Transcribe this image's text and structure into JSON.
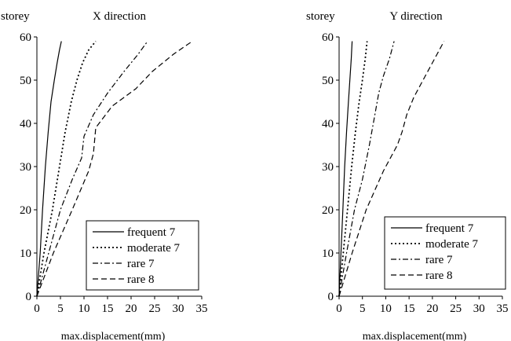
{
  "chart_data": [
    {
      "type": "line",
      "title": "X direction",
      "xlabel": "max.displacement(mm)",
      "ylabel": "storey",
      "xlim": [
        0,
        35
      ],
      "ylim": [
        0,
        60
      ],
      "xticks": [
        "0",
        "5",
        "10",
        "15",
        "20",
        "25",
        "30",
        "35"
      ],
      "yticks": [
        "0",
        "10",
        "20",
        "30",
        "40",
        "50",
        "60"
      ],
      "grid": false,
      "legend_position": "bottom-right",
      "series": [
        {
          "name": "frequent 7",
          "style": "solid",
          "x": [
            0,
            0.7,
            1.2,
            1.8,
            2.4,
            3.0,
            3.7,
            4.3,
            4.8,
            5.2
          ],
          "y": [
            0,
            10,
            20,
            30,
            38,
            45,
            50,
            54,
            57,
            59
          ]
        },
        {
          "name": "moderate 7",
          "style": "dotted",
          "x": [
            0,
            1.5,
            3.3,
            4.8,
            6.0,
            7.3,
            8.5,
            9.7,
            11.0,
            12.5
          ],
          "y": [
            0,
            10,
            20,
            30,
            38,
            45,
            50,
            54,
            57,
            59
          ]
        },
        {
          "name": "rare 7",
          "style": "dashdot",
          "x": [
            0,
            2.5,
            5.0,
            7.5,
            9.5,
            10.0,
            12.0,
            15.0,
            18.5,
            21.5,
            23.5
          ],
          "y": [
            0,
            10,
            20,
            27,
            32,
            37,
            42,
            47,
            52,
            56,
            59
          ]
        },
        {
          "name": "rare 8",
          "style": "dashed",
          "x": [
            0,
            3.5,
            7.5,
            11.0,
            12.0,
            12.5,
            16.0,
            21.0,
            24.5,
            29.0,
            33.0
          ],
          "y": [
            0,
            10,
            20,
            29,
            33,
            39,
            44,
            48,
            52,
            56,
            59
          ]
        }
      ]
    },
    {
      "type": "line",
      "title": "Y direction",
      "xlabel": "max.displacement(mm)",
      "ylabel": "storey",
      "xlim": [
        0,
        35
      ],
      "ylim": [
        0,
        60
      ],
      "xticks": [
        "0",
        "5",
        "10",
        "15",
        "20",
        "25",
        "30",
        "35"
      ],
      "yticks": [
        "0",
        "10",
        "20",
        "30",
        "40",
        "50",
        "60"
      ],
      "grid": false,
      "legend_position": "bottom-right",
      "series": [
        {
          "name": "frequent 7",
          "style": "solid",
          "x": [
            0,
            0.4,
            0.8,
            1.2,
            1.6,
            2.0,
            2.3,
            2.6,
            2.8
          ],
          "y": [
            0,
            10,
            20,
            30,
            38,
            45,
            50,
            55,
            59
          ]
        },
        {
          "name": "moderate 7",
          "style": "dotted",
          "x": [
            0,
            0.9,
            1.8,
            2.7,
            3.5,
            4.3,
            5.0,
            5.6,
            6.0
          ],
          "y": [
            0,
            10,
            20,
            30,
            38,
            45,
            50,
            55,
            59
          ]
        },
        {
          "name": "rare 7",
          "style": "dashdot",
          "x": [
            0,
            1.6,
            3.3,
            5.0,
            6.5,
            7.5,
            8.5,
            9.5,
            10.8,
            11.8
          ],
          "y": [
            0,
            10,
            20,
            27,
            35,
            41,
            47,
            51,
            55,
            59
          ]
        },
        {
          "name": "rare 8",
          "style": "dashed",
          "x": [
            0,
            2.8,
            5.8,
            9.5,
            12.5,
            13.5,
            14.5,
            16.0,
            18.5,
            21.0,
            22.5
          ],
          "y": [
            0,
            10,
            20,
            29,
            35,
            38,
            42,
            46,
            51,
            56,
            59
          ]
        }
      ]
    }
  ]
}
